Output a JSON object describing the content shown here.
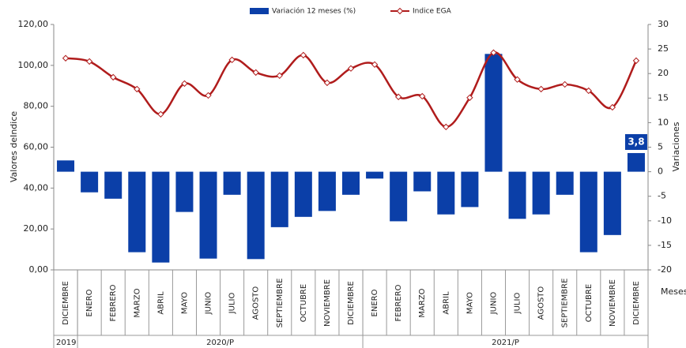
{
  "chart_data": {
    "type": "bar-line",
    "y_label": "Valores deIndice",
    "y2_label": "Variaciones",
    "x_label": "Meses",
    "groups": [
      {
        "label": "2019",
        "categories": [
          "DICIEMBRE"
        ]
      },
      {
        "label": "2020/P",
        "categories": [
          "ENERO",
          "FEBRERO",
          "MARZO",
          "ABRIL",
          "MAYO",
          "JUNIO",
          "JULIO",
          "AGOSTO",
          "SEPTIEMBRE",
          "OCTUBRE",
          "NOVIEMBRE",
          "DICIEMBRE"
        ]
      },
      {
        "label": "2021/P",
        "categories": [
          "ENERO",
          "FEBRERO",
          "MARZO",
          "ABRIL",
          "MAYO",
          "JUNIO",
          "JULIO",
          "AGOSTO",
          "SEPTIEMBRE",
          "OCTUBRE",
          "NOVIEMBRE",
          "DICIEMBRE"
        ]
      }
    ],
    "series": [
      {
        "name": "Variación 12 meses (%)",
        "type": "bar",
        "axis": "y2",
        "color": "#0b3fa8",
        "values": [
          2.3,
          -4.2,
          -5.5,
          -16.4,
          -18.5,
          -8.2,
          -17.7,
          -4.7,
          -17.8,
          -11.3,
          -9.2,
          -8.0,
          -4.7,
          -1.4,
          -10.1,
          -4.0,
          -8.7,
          -7.2,
          24.0,
          -9.6,
          -8.7,
          -4.7,
          -16.4,
          -12.9,
          3.8
        ],
        "value_labels": [
          null,
          null,
          null,
          null,
          null,
          null,
          null,
          null,
          null,
          null,
          null,
          null,
          null,
          null,
          null,
          null,
          null,
          null,
          null,
          null,
          null,
          null,
          null,
          null,
          "3,8"
        ]
      },
      {
        "name": "Indice EGA",
        "type": "line",
        "axis": "y",
        "color": "#b01c1c",
        "values": [
          103.5,
          101.9,
          94.2,
          88.4,
          76.1,
          91.1,
          85.3,
          102.7,
          96.5,
          95.0,
          105.0,
          91.5,
          98.5,
          100.4,
          84.6,
          84.9,
          69.9,
          84.2,
          106.2,
          93.1,
          88.4,
          90.7,
          87.6,
          79.5,
          102.3
        ]
      }
    ],
    "ylim": [
      0,
      120
    ],
    "yticks": [
      {
        "value": 0,
        "label": "0,00"
      },
      {
        "value": 20,
        "label": "20,00"
      },
      {
        "value": 40,
        "label": "40,00"
      },
      {
        "value": 60,
        "label": "60,00"
      },
      {
        "value": 80,
        "label": "80,00"
      },
      {
        "value": 100,
        "label": "100,00"
      },
      {
        "value": 120,
        "label": "120,00"
      }
    ],
    "y2lim": [
      -20,
      30
    ],
    "y2ticks": [
      -20,
      -15,
      -10,
      -5,
      0,
      5,
      10,
      15,
      20,
      25,
      30
    ]
  }
}
